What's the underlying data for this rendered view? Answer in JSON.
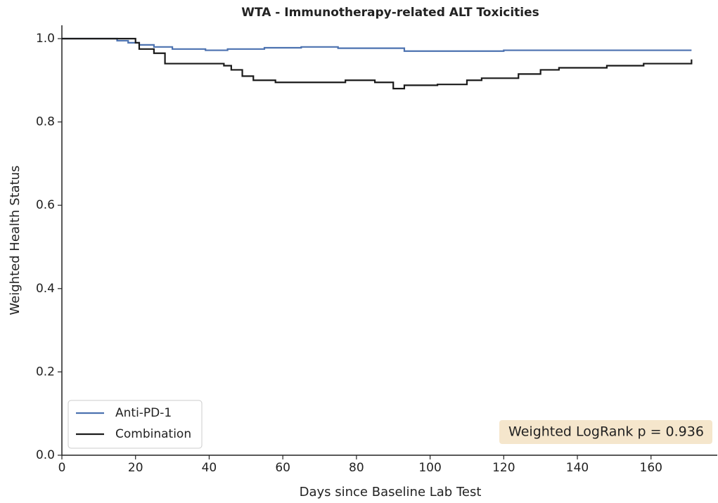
{
  "chart_data": {
    "type": "step",
    "title": "WTA - Immunotherapy-related ALT Toxicities",
    "xlabel": "Days since Baseline Lab Test",
    "ylabel": "Weighted Health Status",
    "annotation": "Weighted LogRank p = 0.936",
    "legend": "lower left",
    "xlim": [
      0,
      178
    ],
    "ylim": [
      0,
      1.032
    ],
    "xticks": [
      0,
      20,
      40,
      60,
      80,
      100,
      120,
      140,
      160
    ],
    "yticks": [
      {
        "value": 0,
        "label": "0.0"
      },
      0.2,
      0.4,
      0.6,
      0.8,
      {
        "value": 1,
        "label": "1.0"
      }
    ],
    "series": [
      {
        "name": "Anti-PD-1",
        "color": "#4c72b0",
        "x": [
          0,
          15,
          18,
          21,
          25,
          30,
          39,
          45,
          55,
          65,
          75,
          93,
          120,
          171
        ],
        "values": [
          1.0,
          0.995,
          0.99,
          0.985,
          0.98,
          0.975,
          0.972,
          0.975,
          0.978,
          0.98,
          0.977,
          0.97,
          0.972,
          0.972
        ]
      },
      {
        "name": "Combination",
        "color": "#1a1a1a",
        "x": [
          0,
          20,
          21,
          25,
          28,
          44,
          46,
          49,
          52,
          58,
          77,
          85,
          90,
          93,
          102,
          110,
          114,
          124,
          130,
          135,
          148,
          158,
          171
        ],
        "values": [
          1.0,
          0.99,
          0.975,
          0.965,
          0.94,
          0.935,
          0.925,
          0.91,
          0.9,
          0.895,
          0.9,
          0.895,
          0.88,
          0.888,
          0.89,
          0.9,
          0.905,
          0.915,
          0.925,
          0.93,
          0.935,
          0.94,
          0.95
        ]
      }
    ]
  }
}
